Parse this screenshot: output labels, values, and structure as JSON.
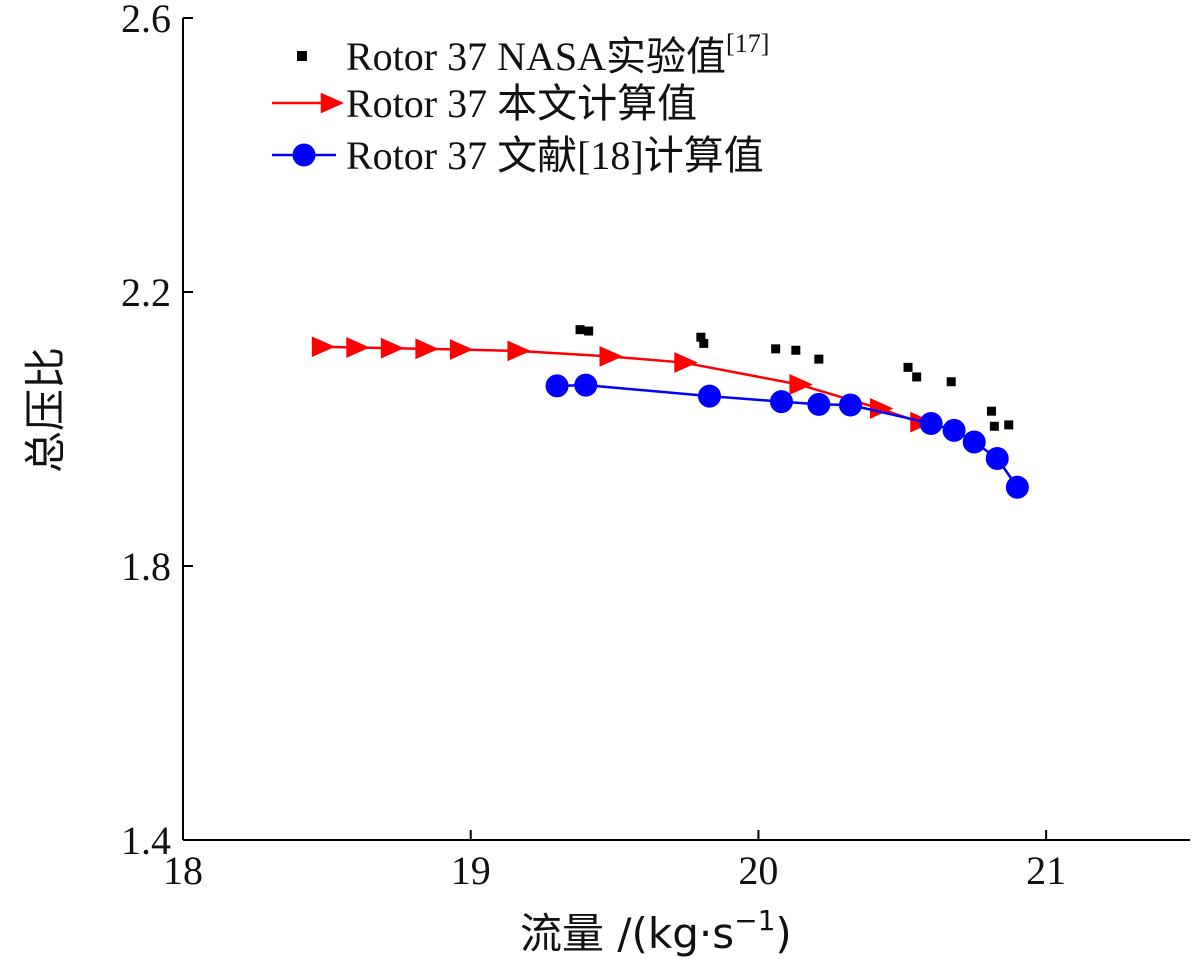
{
  "chart_data": {
    "type": "line",
    "title": "",
    "xlabel": "流量 /(kg·s",
    "xlabel_sup": "−1",
    "xlabel_close": ")",
    "ylabel": "总压比",
    "xlim": [
      18,
      21.5
    ],
    "ylim": [
      1.4,
      2.6
    ],
    "xticks": [
      "18",
      "19",
      "20",
      "21"
    ],
    "yticks": [
      "1.4",
      "1.8",
      "2.2",
      "2.6"
    ],
    "xtick_values": [
      18,
      19,
      20,
      21
    ],
    "ytick_values": [
      1.4,
      1.8,
      2.2,
      2.6
    ],
    "grid": false,
    "legend_position": "top-left",
    "series": [
      {
        "name": "Rotor 37 NASA实验值",
        "name_sup": "[17]",
        "style": "scatter-square",
        "color": "#000000",
        "x": [
          19.38,
          19.41,
          19.8,
          19.81,
          20.06,
          20.13,
          20.21,
          20.52,
          20.55,
          20.67,
          20.81,
          20.82,
          20.87
        ],
        "y": [
          2.145,
          2.143,
          2.134,
          2.125,
          2.117,
          2.115,
          2.102,
          2.09,
          2.076,
          2.069,
          2.026,
          2.004,
          2.006
        ]
      },
      {
        "name": "Rotor 37 本文计算值",
        "style": "line-triangle",
        "color": "#ff0000",
        "x": [
          18.48,
          18.6,
          18.72,
          18.84,
          18.96,
          19.16,
          19.48,
          19.74,
          20.14,
          20.42,
          20.56
        ],
        "y": [
          2.12,
          2.119,
          2.118,
          2.117,
          2.116,
          2.114,
          2.106,
          2.097,
          2.065,
          2.03,
          2.01
        ]
      },
      {
        "name": "Rotor 37 文献[18]计算值",
        "style": "line-circle",
        "color": "#0000ff",
        "x": [
          19.3,
          19.4,
          19.83,
          20.08,
          20.21,
          20.32,
          20.6,
          20.68,
          20.75,
          20.83,
          20.9
        ],
        "y": [
          2.063,
          2.064,
          2.048,
          2.04,
          2.036,
          2.035,
          2.008,
          1.998,
          1.981,
          1.957,
          1.915
        ]
      }
    ]
  }
}
